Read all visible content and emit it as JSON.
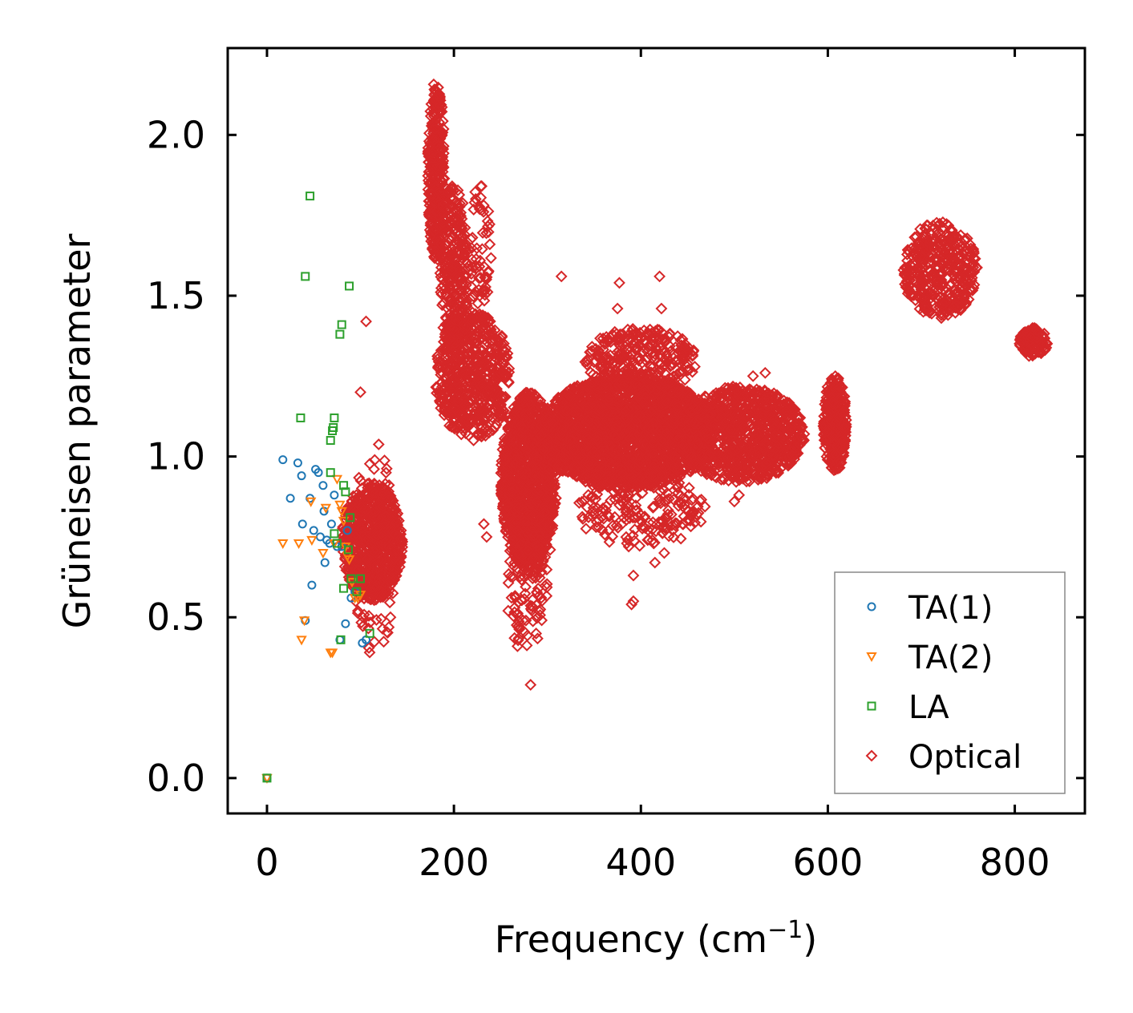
{
  "chart_data": {
    "type": "scatter",
    "title": "",
    "xlabel": "Frequency",
    "xlabel_unit": "(cm",
    "xlabel_exp": "−1",
    "xlabel_close": ")",
    "ylabel": "Grüneisen parameter",
    "xlim": [
      -42,
      875
    ],
    "ylim": [
      -0.11,
      2.27
    ],
    "xticks": [
      0,
      200,
      400,
      600,
      800
    ],
    "xtick_labels": [
      "0",
      "200",
      "400",
      "600",
      "800"
    ],
    "yticks": [
      0.0,
      0.5,
      1.0,
      1.5,
      2.0
    ],
    "ytick_labels": [
      "0.0",
      "0.5",
      "1.0",
      "1.5",
      "2.0"
    ],
    "legend_position": "lower-right",
    "series": [
      {
        "name": "TA(1)",
        "marker": "circle",
        "color": "#1f77b4",
        "points": [
          [
            0,
            0.0
          ],
          [
            17,
            0.99
          ],
          [
            25,
            0.87
          ],
          [
            33,
            0.98
          ],
          [
            37,
            0.94
          ],
          [
            38,
            0.79
          ],
          [
            41,
            0.49
          ],
          [
            46,
            0.87
          ],
          [
            48,
            0.6
          ],
          [
            50,
            0.77
          ],
          [
            52,
            0.96
          ],
          [
            55,
            0.95
          ],
          [
            57,
            0.75
          ],
          [
            60,
            0.91
          ],
          [
            61,
            0.83
          ],
          [
            62,
            0.67
          ],
          [
            64,
            0.74
          ],
          [
            67,
            0.73
          ],
          [
            69,
            0.79
          ],
          [
            72,
            0.88
          ],
          [
            75,
            0.72
          ],
          [
            78,
            0.43
          ],
          [
            80,
            0.72
          ],
          [
            84,
            0.48
          ],
          [
            86,
            0.77
          ],
          [
            90,
            0.56
          ],
          [
            94,
            0.58
          ],
          [
            102,
            0.42
          ],
          [
            106,
            0.43
          ]
        ]
      },
      {
        "name": "TA(2)",
        "marker": "triangle-down",
        "color": "#ff7f0e",
        "points": [
          [
            0,
            0.0
          ],
          [
            17,
            0.73
          ],
          [
            34,
            0.73
          ],
          [
            37,
            0.43
          ],
          [
            40,
            0.49
          ],
          [
            47,
            0.86
          ],
          [
            48,
            0.74
          ],
          [
            60,
            0.7
          ],
          [
            63,
            0.84
          ],
          [
            68,
            0.39
          ],
          [
            70,
            0.39
          ],
          [
            72,
            0.73
          ],
          [
            75,
            0.93
          ],
          [
            78,
            0.85
          ],
          [
            80,
            0.83
          ],
          [
            82,
            0.8
          ],
          [
            84,
            0.72
          ],
          [
            86,
            0.69
          ],
          [
            88,
            0.68
          ],
          [
            91,
            0.61
          ],
          [
            94,
            0.56
          ],
          [
            97,
            0.56
          ],
          [
            100,
            0.57
          ]
        ]
      },
      {
        "name": "LA",
        "marker": "square",
        "color": "#2ca02c",
        "points": [
          [
            0,
            0.0
          ],
          [
            36,
            1.12
          ],
          [
            41,
            1.56
          ],
          [
            46,
            1.81
          ],
          [
            68,
            1.05
          ],
          [
            70,
            1.08
          ],
          [
            71,
            1.09
          ],
          [
            72,
            1.12
          ],
          [
            68,
            0.95
          ],
          [
            72,
            0.76
          ],
          [
            75,
            0.73
          ],
          [
            78,
            1.38
          ],
          [
            80,
            1.41
          ],
          [
            82,
            0.91
          ],
          [
            84,
            0.89
          ],
          [
            87,
            0.71
          ],
          [
            88,
            1.53
          ],
          [
            89,
            0.81
          ],
          [
            90,
            0.62
          ],
          [
            82,
            0.59
          ],
          [
            79,
            0.43
          ],
          [
            96,
            0.58
          ],
          [
            100,
            0.62
          ],
          [
            110,
            0.45
          ]
        ]
      },
      {
        "name": "Optical",
        "marker": "diamond",
        "color": "#d62728",
        "clusters": [
          {
            "x": [
              80,
              145
            ],
            "y": [
              0.55,
              0.92
            ],
            "n": 800
          },
          {
            "x": [
              90,
              140
            ],
            "y": [
              0.38,
              1.05
            ],
            "n": 80
          },
          {
            "x": [
              172,
              190
            ],
            "y": [
              1.6,
              2.17
            ],
            "n": 300
          },
          {
            "x": [
              185,
              215
            ],
            "y": [
              1.3,
              1.85
            ],
            "n": 300
          },
          {
            "x": [
              180,
              260
            ],
            "y": [
              1.05,
              1.45
            ],
            "n": 600
          },
          {
            "x": [
              215,
              240
            ],
            "y": [
              1.45,
              1.85
            ],
            "n": 60
          },
          {
            "x": [
              250,
              310
            ],
            "y": [
              0.65,
              1.2
            ],
            "n": 1200
          },
          {
            "x": [
              255,
              300
            ],
            "y": [
              0.4,
              0.8
            ],
            "n": 120
          },
          {
            "x": [
              290,
              480
            ],
            "y": [
              0.9,
              1.25
            ],
            "n": 2400
          },
          {
            "x": [
              340,
              460
            ],
            "y": [
              1.2,
              1.4
            ],
            "n": 300
          },
          {
            "x": [
              330,
              470
            ],
            "y": [
              0.72,
              0.95
            ],
            "n": 200
          },
          {
            "x": [
              440,
              575
            ],
            "y": [
              0.92,
              1.22
            ],
            "n": 1000
          },
          {
            "x": [
              595,
              620
            ],
            "y": [
              0.95,
              1.25
            ],
            "n": 350
          },
          {
            "x": [
              680,
              760
            ],
            "y": [
              1.43,
              1.73
            ],
            "n": 400
          },
          {
            "x": [
              805,
              835
            ],
            "y": [
              1.31,
              1.4
            ],
            "n": 120
          }
        ],
        "points": [
          [
            106,
            1.42
          ],
          [
            100,
            1.2
          ],
          [
            315,
            1.56
          ],
          [
            377,
            1.54
          ],
          [
            420,
            1.56
          ],
          [
            422,
            1.46
          ],
          [
            375,
            1.46
          ],
          [
            380,
            1.38
          ],
          [
            282,
            0.29
          ],
          [
            268,
            0.41
          ],
          [
            392,
            0.63
          ],
          [
            390,
            0.54
          ],
          [
            392,
            0.55
          ],
          [
            520,
            1.25
          ],
          [
            533,
            1.26
          ],
          [
            525,
            1.2
          ],
          [
            710,
            1.67
          ],
          [
            303,
            0.71
          ],
          [
            277,
            0.49
          ],
          [
            265,
            0.53
          ],
          [
            235,
            0.75
          ],
          [
            232,
            0.79
          ],
          [
            385,
            0.73
          ],
          [
            387,
            0.72
          ],
          [
            415,
            0.67
          ],
          [
            425,
            0.7
          ],
          [
            460,
            0.82
          ],
          [
            505,
            0.88
          ],
          [
            500,
            0.86
          ]
        ]
      }
    ]
  },
  "colors": {
    "ta1": "#1f77b4",
    "ta2": "#ff7f0e",
    "la": "#2ca02c",
    "optical": "#d62728",
    "axes": "#000000",
    "legend_border": "#888888"
  }
}
